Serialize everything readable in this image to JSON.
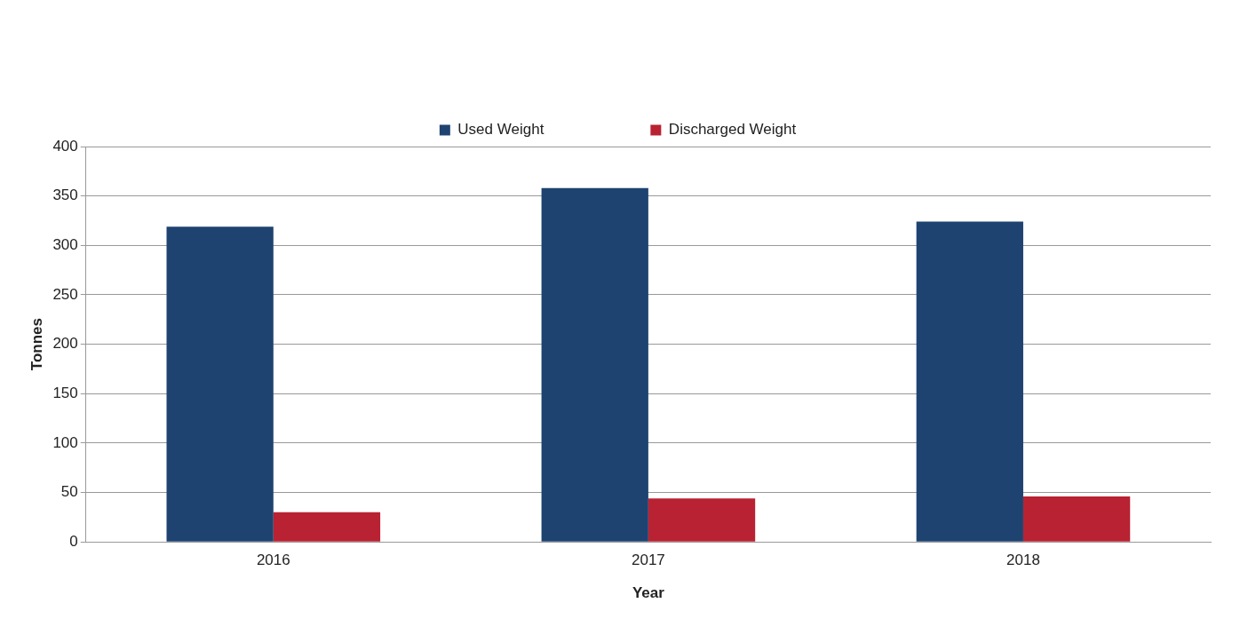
{
  "chart_data": {
    "type": "bar",
    "xlabel": "Year",
    "ylabel": "Tonnes",
    "categories": [
      "2016",
      "2017",
      "2018"
    ],
    "series": [
      {
        "name": "Used Weight",
        "color": "#1f4370",
        "values": [
          319,
          358,
          324
        ]
      },
      {
        "name": "Discharged Weight",
        "color": "#b92232",
        "values": [
          30,
          44,
          46
        ]
      }
    ],
    "ylim": [
      0,
      400
    ],
    "yticks": [
      0,
      50,
      100,
      150,
      200,
      250,
      300,
      350,
      400
    ],
    "grid": "y",
    "legend": "top"
  }
}
